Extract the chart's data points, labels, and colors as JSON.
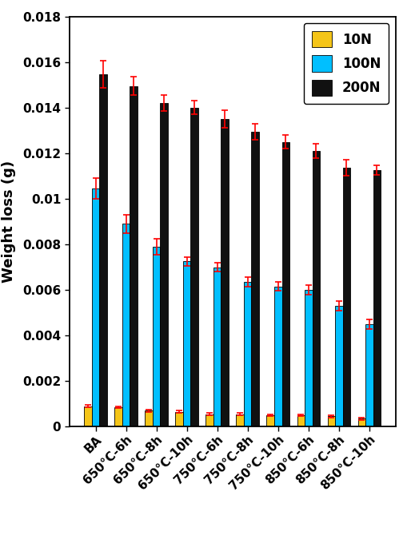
{
  "categories": [
    "BA",
    "650°C-6h",
    "650°C-8h",
    "650°C-10h",
    "750°C-6h",
    "750°C-8h",
    "750°C-10h",
    "850°C-6h",
    "850°C-8h",
    "850°C-10h"
  ],
  "values_10N": [
    0.0009,
    0.00085,
    0.0007,
    0.00065,
    0.00055,
    0.00055,
    0.0005,
    0.0005,
    0.00045,
    0.00035
  ],
  "values_100N": [
    0.01045,
    0.0089,
    0.0079,
    0.00725,
    0.007,
    0.00635,
    0.00615,
    0.006,
    0.0053,
    0.0045
  ],
  "values_200N": [
    0.01545,
    0.01495,
    0.0142,
    0.014,
    0.0135,
    0.01295,
    0.0125,
    0.0121,
    0.01135,
    0.01125
  ],
  "errors_10N": [
    5e-05,
    5e-05,
    5e-05,
    5e-05,
    5e-05,
    5e-05,
    5e-05,
    5e-05,
    5e-05,
    5e-05
  ],
  "errors_100N": [
    0.00045,
    0.0004,
    0.00035,
    0.0002,
    0.0002,
    0.0002,
    0.0002,
    0.0002,
    0.0002,
    0.0002
  ],
  "errors_200N": [
    0.0006,
    0.0004,
    0.00035,
    0.0003,
    0.0004,
    0.00035,
    0.0003,
    0.0003,
    0.00035,
    0.0002
  ],
  "color_10N": "#F5C518",
  "color_100N": "#00BFFF",
  "color_200N": "#111111",
  "ylabel": "Weight loss (g)",
  "ylim": [
    0,
    0.018
  ],
  "ytick_vals": [
    0,
    0.002,
    0.004,
    0.006,
    0.008,
    0.01,
    0.012,
    0.014,
    0.016,
    0.018
  ],
  "ytick_labels": [
    "0",
    "0.002",
    "0.004",
    "0.006",
    "0.008",
    "0.01",
    "0.012",
    "0.014",
    "0.016",
    "0.018"
  ],
  "legend_labels": [
    "10N",
    "100N",
    "200N"
  ],
  "bar_width": 0.25,
  "figsize": [
    5.1,
    6.85
  ],
  "dpi": 100
}
